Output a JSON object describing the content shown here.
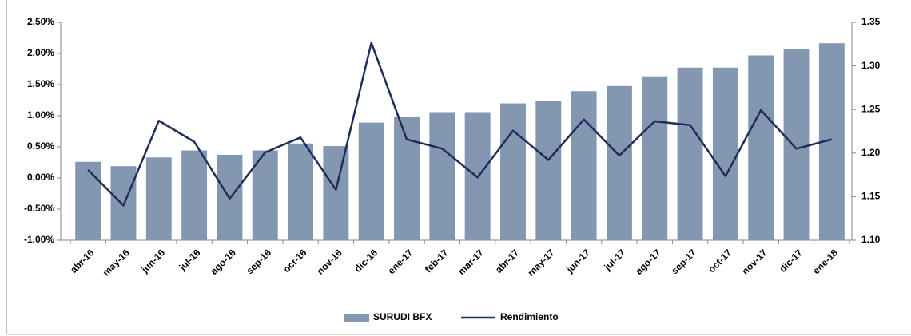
{
  "chart_data": {
    "type": "bar_line",
    "categories": [
      "abr-16",
      "may-16",
      "jun-16",
      "jul-16",
      "ago-16",
      "sep-16",
      "oct-16",
      "nov-16",
      "dic-16",
      "ene-17",
      "feb-17",
      "mar-17",
      "abr-17",
      "may-17",
      "jun-17",
      "jul-17",
      "ago-17",
      "sep-17",
      "oct-17",
      "nov-17",
      "dic-17",
      "ene-18"
    ],
    "series": [
      {
        "name": "SURUDI BFX",
        "type": "bar",
        "axis": "y2",
        "color": "#8497b0",
        "values": [
          1.19,
          1.185,
          1.195,
          1.203,
          1.198,
          1.203,
          1.211,
          1.208,
          1.235,
          1.242,
          1.247,
          1.247,
          1.257,
          1.26,
          1.271,
          1.277,
          1.288,
          1.298,
          1.298,
          1.312,
          1.319,
          1.326
        ]
      },
      {
        "name": "Rendimiento",
        "type": "line",
        "axis": "y",
        "color": "#1f2d5a",
        "values": [
          0.13,
          -0.44,
          0.92,
          0.58,
          -0.33,
          0.41,
          0.65,
          -0.19,
          2.17,
          0.62,
          0.47,
          0.01,
          0.76,
          0.29,
          0.94,
          0.36,
          0.91,
          0.85,
          0.03,
          1.09,
          0.47,
          0.62
        ]
      }
    ],
    "ylim": [
      -1,
      2.5
    ],
    "yticks": [
      {
        "value": -1,
        "label": "-1.00%"
      },
      {
        "value": -0.5,
        "label": "-0.50%"
      },
      {
        "value": 0,
        "label": "0.00%"
      },
      {
        "value": 0.5,
        "label": "0.50%"
      },
      {
        "value": 1,
        "label": "1.00%"
      },
      {
        "value": 1.5,
        "label": "1.50%"
      },
      {
        "value": 2,
        "label": "2.00%"
      },
      {
        "value": 2.5,
        "label": "2.50%"
      }
    ],
    "y2lim": [
      1.1,
      1.35
    ],
    "y2ticks": [
      {
        "value": 1.1,
        "label": "1.10"
      },
      {
        "value": 1.15,
        "label": "1.15"
      },
      {
        "value": 1.2,
        "label": "1.20"
      },
      {
        "value": 1.25,
        "label": "1.25"
      },
      {
        "value": 1.3,
        "label": "1.30"
      },
      {
        "value": 1.35,
        "label": "1.35"
      }
    ],
    "legend": "bottom"
  }
}
